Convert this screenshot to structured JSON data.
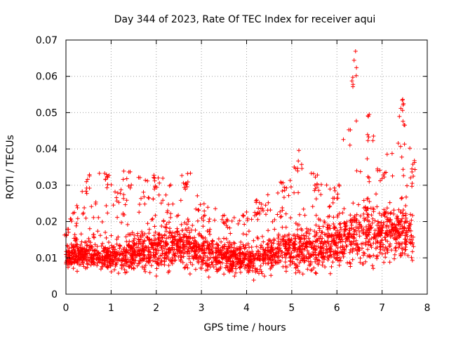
{
  "chart_data": {
    "type": "scatter",
    "title": "Day 344 of 2023, Rate Of TEC Index for receiver aqui",
    "xlabel": "GPS time / hours",
    "ylabel": "ROTI / TECUs",
    "xlim": [
      0,
      8
    ],
    "ylim": [
      0,
      0.07
    ],
    "x_ticks": [
      0,
      1,
      2,
      3,
      4,
      5,
      6,
      7,
      8
    ],
    "x_tick_labels": [
      "0",
      "1",
      "2",
      "3",
      "4",
      "5",
      "6",
      "7",
      "8"
    ],
    "y_ticks": [
      0,
      0.01,
      0.02,
      0.03,
      0.04,
      0.05,
      0.06,
      0.07
    ],
    "y_tick_labels": [
      "0",
      "0.01",
      "0.02",
      "0.03",
      "0.04",
      "0.05",
      "0.06",
      "0.07"
    ],
    "grid": true,
    "marker": "+",
    "series_color": "#ff0000",
    "x_data_range": [
      0.0,
      7.7
    ],
    "envelope": [
      {
        "x": 0.0,
        "low": 0.006,
        "typical": 0.01,
        "high": 0.018
      },
      {
        "x": 0.5,
        "low": 0.005,
        "typical": 0.011,
        "high": 0.033
      },
      {
        "x": 0.9,
        "low": 0.005,
        "typical": 0.01,
        "high": 0.034
      },
      {
        "x": 1.4,
        "low": 0.004,
        "typical": 0.011,
        "high": 0.034
      },
      {
        "x": 2.0,
        "low": 0.004,
        "typical": 0.012,
        "high": 0.033
      },
      {
        "x": 2.7,
        "low": 0.004,
        "typical": 0.013,
        "high": 0.034
      },
      {
        "x": 3.5,
        "low": 0.004,
        "typical": 0.01,
        "high": 0.022
      },
      {
        "x": 4.2,
        "low": 0.003,
        "typical": 0.009,
        "high": 0.026
      },
      {
        "x": 4.8,
        "low": 0.004,
        "typical": 0.012,
        "high": 0.031
      },
      {
        "x": 5.1,
        "low": 0.004,
        "typical": 0.013,
        "high": 0.04
      },
      {
        "x": 5.5,
        "low": 0.003,
        "typical": 0.012,
        "high": 0.034
      },
      {
        "x": 6.0,
        "low": 0.004,
        "typical": 0.014,
        "high": 0.03
      },
      {
        "x": 6.4,
        "low": 0.005,
        "typical": 0.016,
        "high": 0.069
      },
      {
        "x": 6.7,
        "low": 0.005,
        "typical": 0.017,
        "high": 0.05
      },
      {
        "x": 7.0,
        "low": 0.006,
        "typical": 0.016,
        "high": 0.035
      },
      {
        "x": 7.45,
        "low": 0.007,
        "typical": 0.018,
        "high": 0.054
      },
      {
        "x": 7.7,
        "low": 0.006,
        "typical": 0.015,
        "high": 0.038
      }
    ]
  }
}
